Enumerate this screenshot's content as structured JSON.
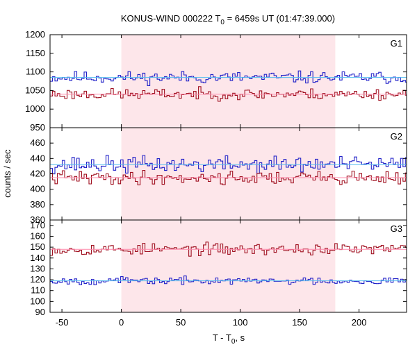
{
  "title": {
    "main": "KONUS-WIND 000222 T",
    "sub": "0",
    "rest": " = 6459s UT (01:47:39.000)"
  },
  "colors": {
    "red_series": "#a01020",
    "blue_series": "#2020c8",
    "red_fit": "#ff88aa",
    "blue_fit": "#55bbee",
    "shade": "#fde6ea"
  },
  "chart_data": {
    "type": "line",
    "step": true,
    "x_label_main": "T - T",
    "x_label_sub": "0",
    "x_label_rest": ", s",
    "y_label": "counts / sec",
    "x_range": [
      -60,
      240
    ],
    "x_ticks": [
      -50,
      0,
      50,
      100,
      150,
      200
    ],
    "shaded_interval": [
      0,
      180
    ],
    "panels": [
      {
        "name": "G1",
        "y_range": [
          950,
          1200
        ],
        "y_ticks": [
          950,
          1000,
          1050,
          1100,
          1150,
          1200
        ],
        "series": [
          {
            "color_key": "blue_series",
            "level": 1085,
            "spread": 24,
            "seed": 11
          },
          {
            "color_key": "red_series",
            "level": 1040,
            "spread": 22,
            "seed": 23
          }
        ],
        "fits": [
          {
            "color_key": "blue_fit",
            "y": 1085
          },
          {
            "color_key": "red_fit",
            "y": 1040
          }
        ]
      },
      {
        "name": "G2",
        "y_range": [
          360,
          480
        ],
        "y_ticks": [
          360,
          380,
          400,
          420,
          440,
          460
        ],
        "series": [
          {
            "color_key": "blue_series",
            "level": 432,
            "spread": 16,
            "seed": 37
          },
          {
            "color_key": "red_series",
            "level": 415,
            "spread": 13,
            "seed": 41
          }
        ],
        "fits": [
          {
            "color_key": "blue_fit",
            "y": 432
          },
          {
            "color_key": "red_fit",
            "y": 415
          }
        ]
      },
      {
        "name": "G3",
        "y_range": [
          90,
          175
        ],
        "y_ticks": [
          90,
          100,
          110,
          120,
          130,
          140,
          150,
          160,
          170
        ],
        "series": [
          {
            "color_key": "red_series",
            "level": 148,
            "spread": 8,
            "seed": 53
          },
          {
            "color_key": "blue_series",
            "level": 119,
            "spread": 5,
            "seed": 67
          }
        ],
        "fits": [
          {
            "color_key": "red_fit",
            "y": 148
          },
          {
            "color_key": "blue_fit",
            "y": 119
          }
        ]
      }
    ]
  }
}
